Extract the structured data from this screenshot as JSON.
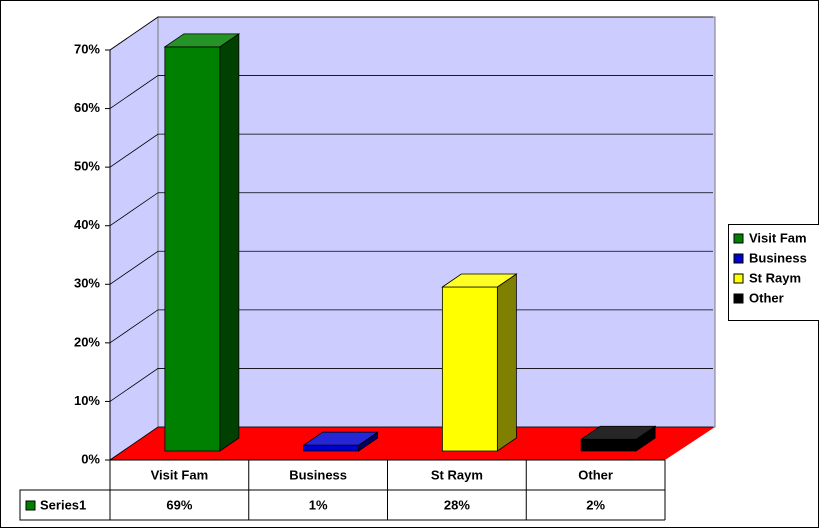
{
  "chart_data": {
    "type": "bar3d",
    "categories": [
      "Visit Fam",
      "Business",
      "St Raym",
      "Other"
    ],
    "colors": [
      "#008000",
      "#0000cc",
      "#ffff00",
      "#000000"
    ],
    "series": [
      {
        "name": "Series1",
        "color": "#008000",
        "values": [
          69,
          1,
          28,
          2
        ],
        "value_labels": [
          "69%",
          "1%",
          "28%",
          "2%"
        ]
      }
    ],
    "ylim": [
      0,
      70
    ],
    "yticks": [
      {
        "value": 0,
        "label": "0%"
      },
      {
        "value": 10,
        "label": "10%"
      },
      {
        "value": 20,
        "label": "20%"
      },
      {
        "value": 30,
        "label": "30%"
      },
      {
        "value": 40,
        "label": "40%"
      },
      {
        "value": 50,
        "label": "50%"
      },
      {
        "value": 60,
        "label": "60%"
      },
      {
        "value": 70,
        "label": "70%"
      }
    ],
    "grid": true,
    "legend": "right"
  }
}
